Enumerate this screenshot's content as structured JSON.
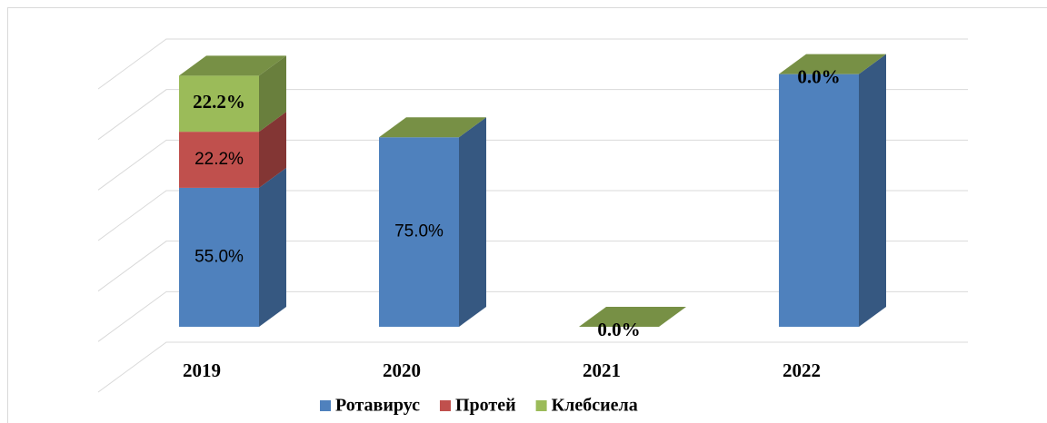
{
  "chart_data": {
    "type": "bar3d_stacked",
    "categories": [
      "2019",
      "2020",
      "2021",
      "2022"
    ],
    "series": [
      {
        "name": "Ротавирус",
        "color": "#4f81bd",
        "values": [
          55,
          75,
          0,
          100
        ],
        "value_labels": [
          "55.0%",
          "75.0%",
          null,
          null
        ]
      },
      {
        "name": "Протей",
        "color": "#c0504d",
        "values": [
          22.2,
          0,
          0,
          0
        ],
        "value_labels": [
          "22.2%",
          null,
          null,
          null
        ]
      },
      {
        "name": "Клебсиела",
        "color": "#9bbb59",
        "values": [
          22.2,
          0,
          0,
          0
        ],
        "value_labels": [
          "22.2%",
          null,
          "0.0%",
          "0.0%"
        ]
      }
    ],
    "ylim": [
      0,
      120
    ],
    "yticks": [
      0,
      20,
      40,
      60,
      80,
      100,
      120
    ],
    "grid": true,
    "legend": "bottom"
  }
}
